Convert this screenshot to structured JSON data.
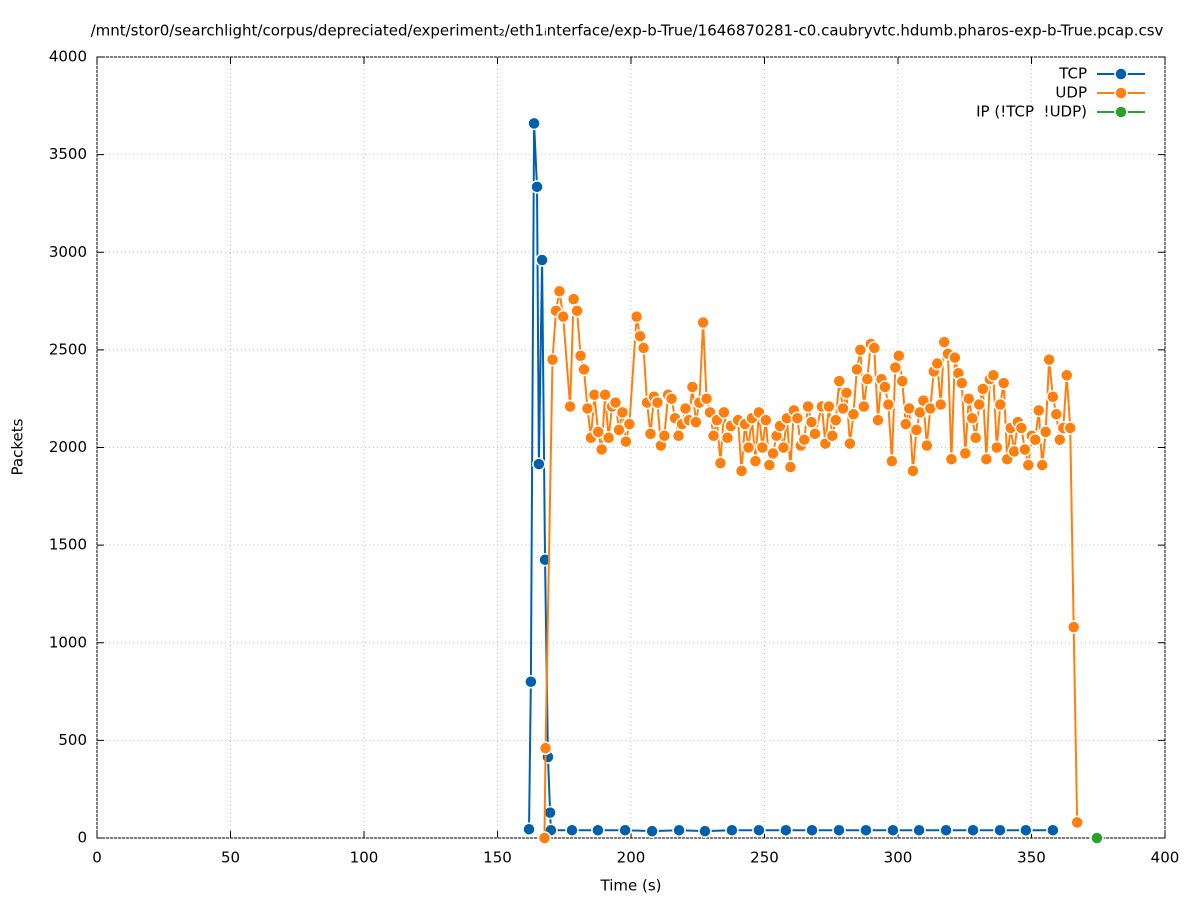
{
  "chart_data": {
    "type": "line",
    "title": "/mnt/stor0/searchlight/corpus/depreciated/experiment₂/eth1ᵢnterface/exp-b-True/1646870281-c0.caubryvtc.hdumb.pharos-exp-b-True.pcap.csv",
    "x_label": "Time (s)",
    "y_label": "Packets",
    "xlim": [
      0,
      400
    ],
    "xticks": [
      0,
      50,
      100,
      150,
      200,
      250,
      300,
      350,
      400
    ],
    "ylim": [
      0,
      4000
    ],
    "yticks": [
      0,
      500,
      1000,
      1500,
      2000,
      2500,
      3000,
      3500,
      4000
    ],
    "grid": true,
    "legend": "top-right",
    "series": [
      {
        "name": "TCP",
        "color": "#0060ad",
        "x": [
          161.8,
          162.5,
          163.7,
          164.8,
          165.5,
          166.7,
          167.8,
          168.9,
          169.7,
          170,
          177.9,
          187.6,
          197.8,
          207.9,
          218,
          227.7,
          237.8,
          247.9,
          258,
          267.8,
          277.9,
          288,
          298.1,
          307.9,
          318,
          328.1,
          338.2,
          347.9,
          358
        ],
        "values": [
          45,
          800,
          3660,
          3335,
          1915,
          2960,
          1425,
          415,
          130,
          40,
          40,
          40,
          40,
          35,
          40,
          35,
          40,
          40,
          40,
          40,
          40,
          40,
          40,
          40,
          40,
          40,
          40,
          40,
          40
        ]
      },
      {
        "name": "UDP",
        "color": "#ff7f0e",
        "x": [
          167.6,
          168,
          170.6,
          171.9,
          173.2,
          174.6,
          177.2,
          178.5,
          179.8,
          181.1,
          182.4,
          183.7,
          185.0,
          186.3,
          187.7,
          189.0,
          190.3,
          191.6,
          192.9,
          194.2,
          195.5,
          196.8,
          198.1,
          199.4,
          202.1,
          203.4,
          204.7,
          206.0,
          207.3,
          208.6,
          209.9,
          211.2,
          212.5,
          213.9,
          215.2,
          216.5,
          217.8,
          219.1,
          220.4,
          221.7,
          223.0,
          224.3,
          225.6,
          227.0,
          228.3,
          229.6,
          230.9,
          232.2,
          233.5,
          234.8,
          236.1,
          237.4,
          240.1,
          241.4,
          242.7,
          244.0,
          245.3,
          246.6,
          247.9,
          249.2,
          250.5,
          251.8,
          253.2,
          254.5,
          255.8,
          257.1,
          258.4,
          259.7,
          261.0,
          262.3,
          263.6,
          264.9,
          266.3,
          267.6,
          268.9,
          271.5,
          272.8,
          274.1,
          275.4,
          276.7,
          278.0,
          279.4,
          280.7,
          282.0,
          283.3,
          284.6,
          285.9,
          287.2,
          288.5,
          289.8,
          291.1,
          292.5,
          293.8,
          295.1,
          296.4,
          297.7,
          299.0,
          300.3,
          301.6,
          302.9,
          304.2,
          305.6,
          306.9,
          308.2,
          309.5,
          310.8,
          312.1,
          313.4,
          314.7,
          316.0,
          317.3,
          318.7,
          320.0,
          321.3,
          322.6,
          323.9,
          325.2,
          326.5,
          327.8,
          329.1,
          330.4,
          331.8,
          333.1,
          334.4,
          335.7,
          337.0,
          338.3,
          339.6,
          340.9,
          342.2,
          343.5,
          344.9,
          346.2,
          347.5,
          348.8,
          350.1,
          351.4,
          352.7,
          354.0,
          355.3,
          356.6,
          358.0,
          359.3,
          360.6,
          361.9,
          363.2,
          364.5,
          365.8,
          367.1
        ],
        "values": [
          0,
          460,
          2450,
          2700,
          2800,
          2670,
          2210,
          2760,
          2700,
          2470,
          2400,
          2200,
          2050,
          2270,
          2080,
          1990,
          2270,
          2050,
          2210,
          2230,
          2090,
          2180,
          2030,
          2120,
          2670,
          2570,
          2510,
          2230,
          2070,
          2260,
          2230,
          2010,
          2060,
          2270,
          2250,
          2150,
          2060,
          2120,
          2200,
          2140,
          2310,
          2130,
          2230,
          2640,
          2250,
          2180,
          2060,
          2140,
          1920,
          2180,
          2050,
          2110,
          2140,
          1880,
          2120,
          2000,
          2150,
          1930,
          2180,
          2000,
          2140,
          1910,
          1970,
          2060,
          2110,
          2000,
          2150,
          1900,
          2190,
          2150,
          2010,
          2040,
          2210,
          2130,
          2070,
          2210,
          2020,
          2210,
          2060,
          2140,
          2340,
          2200,
          2280,
          2020,
          2170,
          2400,
          2500,
          2210,
          2350,
          2530,
          2510,
          2140,
          2350,
          2310,
          2220,
          1930,
          2410,
          2470,
          2340,
          2120,
          2200,
          1880,
          2090,
          2180,
          2240,
          2010,
          2200,
          2390,
          2430,
          2220,
          2540,
          2480,
          1940,
          2460,
          2380,
          2330,
          1970,
          2250,
          2150,
          2050,
          2220,
          2300,
          1940,
          2350,
          2370,
          2000,
          2220,
          2330,
          1940,
          2100,
          1980,
          2130,
          2100,
          1990,
          1910,
          2060,
          2040,
          2190,
          1910,
          2080,
          2450,
          2260,
          2170,
          2040,
          2100,
          2370,
          2100,
          1080,
          80
        ]
      },
      {
        "name": "IP (!TCP  !UDP)",
        "color": "#2ca02c",
        "x": [
          374.5
        ],
        "values": [
          0
        ]
      }
    ]
  }
}
